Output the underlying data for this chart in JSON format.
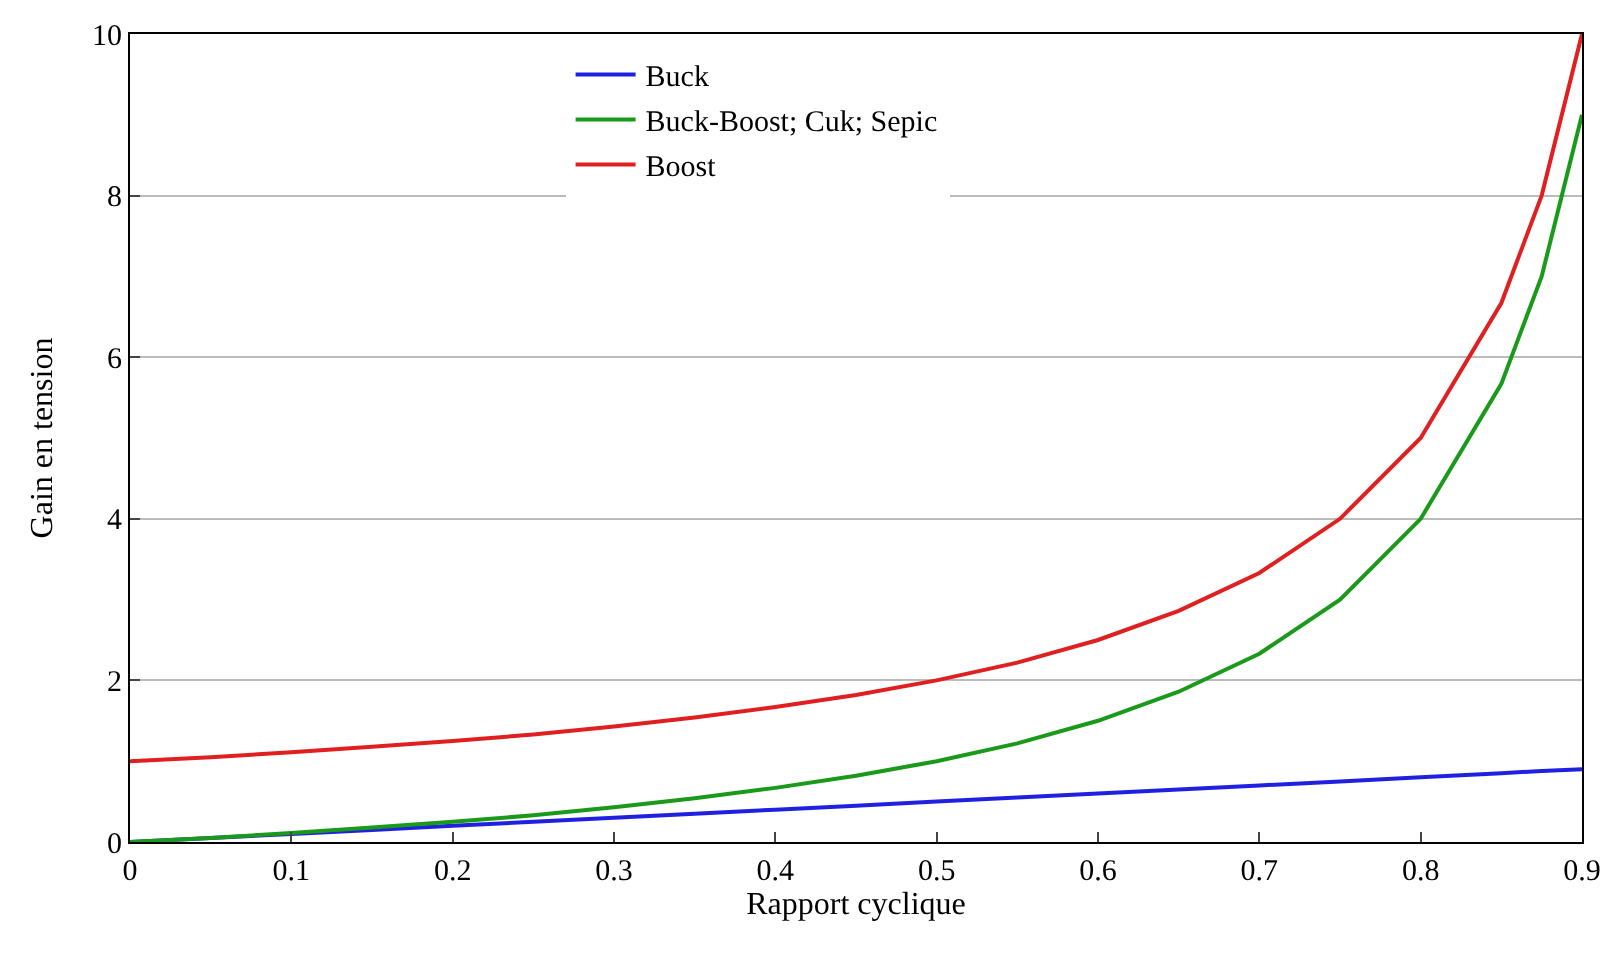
{
  "chart_data": {
    "type": "line",
    "xlabel": "Rapport cyclique",
    "ylabel": "Gain en tension",
    "x": [
      0,
      0.05,
      0.1,
      0.15,
      0.2,
      0.25,
      0.3,
      0.35,
      0.4,
      0.45,
      0.5,
      0.55,
      0.6,
      0.65,
      0.7,
      0.75,
      0.8,
      0.85,
      0.875,
      0.9
    ],
    "series": [
      {
        "name": "Buck",
        "color": "#2020e0",
        "values": [
          0,
          0.05,
          0.1,
          0.15,
          0.2,
          0.25,
          0.3,
          0.35,
          0.4,
          0.45,
          0.5,
          0.55,
          0.6,
          0.65,
          0.7,
          0.75,
          0.8,
          0.85,
          0.88,
          0.9
        ]
      },
      {
        "name": "Buck-Boost; Cuk; Sepic",
        "color": "#1a9a1a",
        "values": [
          0,
          0.05,
          0.11,
          0.18,
          0.25,
          0.33,
          0.43,
          0.54,
          0.67,
          0.82,
          1.0,
          1.22,
          1.5,
          1.86,
          2.33,
          3.0,
          4.0,
          5.67,
          7.0,
          9.0
        ]
      },
      {
        "name": "Boost",
        "color": "#e02020",
        "values": [
          1,
          1.05,
          1.11,
          1.18,
          1.25,
          1.33,
          1.43,
          1.54,
          1.67,
          1.82,
          2.0,
          2.22,
          2.5,
          2.86,
          3.33,
          4.0,
          5.0,
          6.67,
          8.0,
          10.0
        ]
      }
    ],
    "xlim": [
      0,
      0.9
    ],
    "xticks": [
      0,
      0.1,
      0.2,
      0.3,
      0.4,
      0.5,
      0.6,
      0.7,
      0.8,
      0.9
    ],
    "ylim": [
      0,
      10
    ],
    "yticks": [
      0,
      2,
      4,
      6,
      8,
      10
    ],
    "grid": "y",
    "legend": "top",
    "marker": "none",
    "line_style": "solid"
  }
}
